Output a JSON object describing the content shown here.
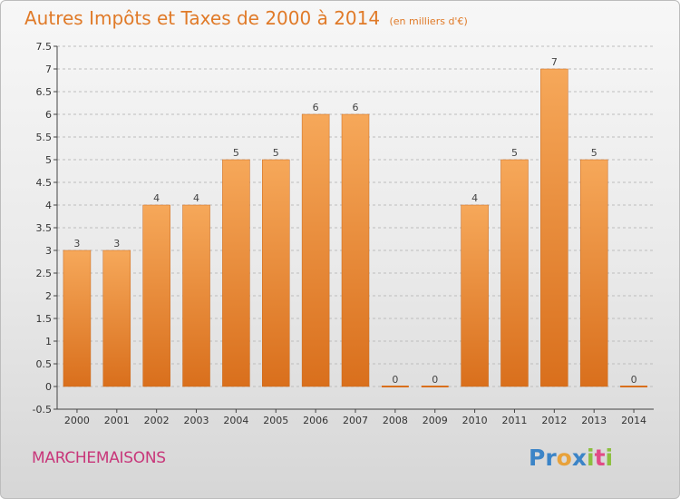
{
  "header": {
    "title": "Autres Impôts et Taxes de 2000 à 2014",
    "unit": "(en milliers d'€)"
  },
  "footer": {
    "town": "MARCHEMAISONS"
  },
  "logo": {
    "letters": [
      {
        "ch": "P",
        "color": "#3b84c7"
      },
      {
        "ch": "r",
        "color": "#3b84c7"
      },
      {
        "ch": "o",
        "color": "#e8a23b"
      },
      {
        "ch": "x",
        "color": "#3b84c7"
      },
      {
        "ch": "i",
        "color": "#8cbf3f"
      },
      {
        "ch": "t",
        "color": "#e14b86"
      },
      {
        "ch": "i",
        "color": "#8cbf3f"
      }
    ]
  },
  "colors": {
    "bar_light": "#f6a85a",
    "bar_dark": "#d96f1c",
    "grid": "#bdbdbd",
    "axis": "#444444"
  },
  "chart_data": {
    "type": "bar",
    "title": "Autres Impôts et Taxes de 2000 à 2014",
    "categories": [
      "2000",
      "2001",
      "2002",
      "2003",
      "2004",
      "2005",
      "2006",
      "2007",
      "2008",
      "2009",
      "2010",
      "2011",
      "2012",
      "2013",
      "2014"
    ],
    "values": [
      3,
      3,
      4,
      4,
      5,
      5,
      6,
      6,
      0,
      0,
      4,
      5,
      7,
      5,
      0
    ],
    "data_labels": [
      "3",
      "3",
      "4",
      "4",
      "5",
      "5",
      "6",
      "6",
      "0",
      "0",
      "4",
      "5",
      "7",
      "5",
      "0"
    ],
    "ylim": [
      -0.5,
      7.5
    ],
    "yticks": [
      {
        "v": -0.5,
        "t": "-0.5"
      },
      {
        "v": 0,
        "t": "0"
      },
      {
        "v": 0.5,
        "t": "0.5"
      },
      {
        "v": 1,
        "t": "1"
      },
      {
        "v": 1.5,
        "t": "1.5"
      },
      {
        "v": 2,
        "t": "2"
      },
      {
        "v": 2.5,
        "t": "2.5"
      },
      {
        "v": 3,
        "t": "3"
      },
      {
        "v": 3.5,
        "t": "3.5"
      },
      {
        "v": 4,
        "t": "4"
      },
      {
        "v": 4.5,
        "t": "4.5"
      },
      {
        "v": 5,
        "t": "5"
      },
      {
        "v": 5.5,
        "t": "5.5"
      },
      {
        "v": 6,
        "t": "6"
      },
      {
        "v": 6.5,
        "t": "6.5"
      },
      {
        "v": 7,
        "t": "7"
      },
      {
        "v": 7.5,
        "t": "7.5"
      }
    ],
    "grid": true,
    "xlabel": "",
    "ylabel": ""
  }
}
